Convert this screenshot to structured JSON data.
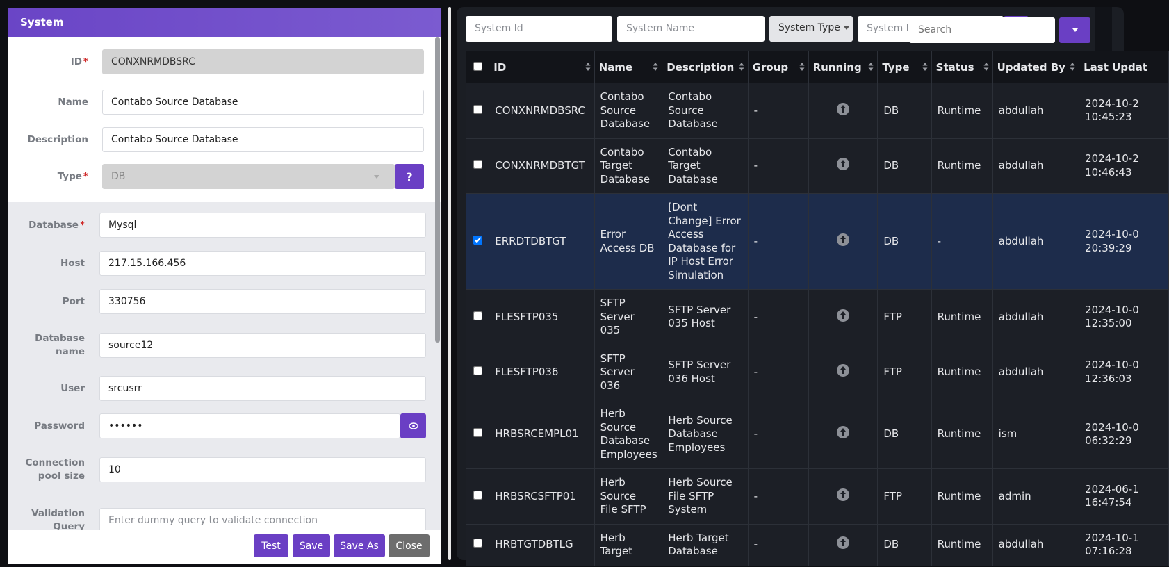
{
  "form": {
    "title": "System",
    "required_mark": "*",
    "general": [
      {
        "label": "ID",
        "value": "CONXNRMDBSRC",
        "required": true,
        "disabled": true
      },
      {
        "label": "Name",
        "value": "Contabo Source Database"
      },
      {
        "label": "Description",
        "value": "Contabo Source Database"
      },
      {
        "label": "Type",
        "value": "DB",
        "required": true,
        "disabled": true,
        "help": "?"
      }
    ],
    "connection": [
      {
        "label": "Database",
        "value": "Mysql",
        "required": true
      },
      {
        "label": "Host",
        "value": "217.15.166.456"
      },
      {
        "label": "Port",
        "value": "330756"
      },
      {
        "label": "Database name",
        "value": "source12"
      },
      {
        "label": "User",
        "value": "srcusrr"
      },
      {
        "label": "Password",
        "value": "••••••",
        "secret": true
      },
      {
        "label": "Connection pool size",
        "value": "10"
      },
      {
        "label": "Validation Query",
        "placeholder": "Enter dummy query to validate connection"
      }
    ],
    "buttons": [
      "Test",
      "Save",
      "Save As",
      "Close"
    ]
  },
  "filters": {
    "system_id": "System Id",
    "system_name": "System Name",
    "system_type": "System Type",
    "system_ip": "System IP",
    "search": "Search"
  },
  "table": {
    "columns": [
      "ID",
      "Name",
      "Description",
      "Group",
      "Running",
      "Type",
      "Status",
      "Updated By",
      "Last Updat"
    ],
    "rows": [
      {
        "checked": false,
        "cells": [
          "CONXNRMDBSRC",
          "Contabo Source Database",
          "Contabo Source Database",
          "-",
          null,
          "DB",
          "Runtime",
          "abdullah",
          "2024-10-2 10:45:23"
        ]
      },
      {
        "checked": false,
        "cells": [
          "CONXNRMDBTGT",
          "Contabo Target Database",
          "Contabo Target Database",
          "-",
          null,
          "DB",
          "Runtime",
          "abdullah",
          "2024-10-2 10:46:43"
        ]
      },
      {
        "checked": true,
        "cells": [
          "ERRDTDBTGT",
          "Error Access DB",
          "[Dont Change] Error Access Database for IP Host Error Simulation",
          "-",
          null,
          "DB",
          "-",
          "abdullah",
          "2024-10-0 20:39:29"
        ]
      },
      {
        "checked": false,
        "cells": [
          "FLESFTP035",
          "SFTP Server 035",
          "SFTP Server 035 Host",
          "-",
          null,
          "FTP",
          "Runtime",
          "abdullah",
          "2024-10-0 12:35:00"
        ]
      },
      {
        "checked": false,
        "cells": [
          "FLESFTP036",
          "SFTP Server 036",
          "SFTP Server 036 Host",
          "-",
          null,
          "FTP",
          "Runtime",
          "abdullah",
          "2024-10-0 12:36:03"
        ]
      },
      {
        "checked": false,
        "cells": [
          "HRBSRCEMPL01",
          "Herb Source Database Employees",
          "Herb Source Database Employees",
          "-",
          null,
          "DB",
          "Runtime",
          "ism",
          "2024-10-0 06:32:29"
        ]
      },
      {
        "checked": false,
        "cells": [
          "HRBSRCSFTP01",
          "Herb Source File SFTP",
          "Herb Source File SFTP System",
          "-",
          null,
          "FTP",
          "Runtime",
          "admin",
          "2024-06-1 16:47:54"
        ]
      },
      {
        "checked": false,
        "cells": [
          "HRBTGTDBTLG",
          "Herb Target",
          "Herb Target Database",
          "-",
          null,
          "DB",
          "Runtime",
          "abdullah",
          "2024-10-1 07:16:28"
        ]
      }
    ]
  }
}
